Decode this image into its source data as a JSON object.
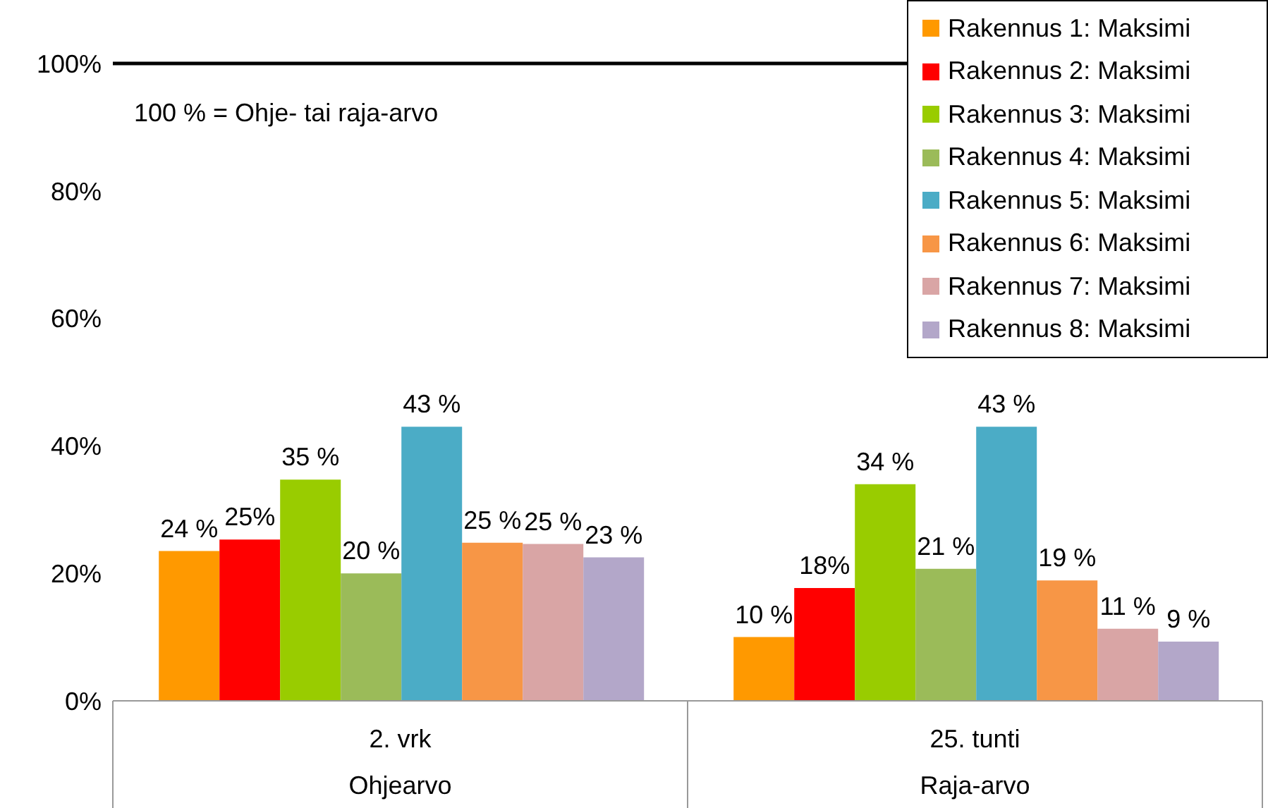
{
  "chart_data": {
    "type": "bar",
    "categories": [
      "2. vrk",
      "25. tunti"
    ],
    "series": [
      {
        "name": "Rakennus 1: Maksimi",
        "color": "#ff9900",
        "values": [
          23.5,
          10
        ],
        "value_labels": [
          "24 %",
          "10 %"
        ]
      },
      {
        "name": "Rakennus 2: Maksimi",
        "color": "#ff0000",
        "values": [
          25.3,
          17.7
        ],
        "value_labels": [
          "25%",
          "18%"
        ]
      },
      {
        "name": "Rakennus 3: Maksimi",
        "color": "#99cc00",
        "values": [
          34.7,
          34
        ],
        "value_labels": [
          "35 %",
          "34 %"
        ]
      },
      {
        "name": "Rakennus 4: Maksimi",
        "color": "#9bbb59",
        "values": [
          20,
          20.7
        ],
        "value_labels": [
          "20 %",
          "21 %"
        ]
      },
      {
        "name": "Rakennus 5: Maksimi",
        "color": "#4bacc6",
        "values": [
          43,
          43
        ],
        "value_labels": [
          "43 %",
          "43 %"
        ]
      },
      {
        "name": "Rakennus 6: Maksimi",
        "color": "#f79646",
        "values": [
          24.8,
          18.9
        ],
        "value_labels": [
          "25 %",
          "19 %"
        ]
      },
      {
        "name": "Rakennus 7: Maksimi",
        "color": "#d9a5a5",
        "values": [
          24.6,
          11.3
        ],
        "value_labels": [
          "25 %",
          "11 %"
        ]
      },
      {
        "name": "Rakennus 8: Maksimi",
        "color": "#b3a7c9",
        "values": [
          22.5,
          9.3
        ],
        "value_labels": [
          "23 %",
          "9 %"
        ]
      }
    ],
    "ylim": [
      0,
      100
    ],
    "yticks": [
      {
        "value": 0,
        "label": "0%"
      },
      {
        "value": 20,
        "label": "20%"
      },
      {
        "value": 40,
        "label": "40%"
      },
      {
        "value": 60,
        "label": "60%"
      },
      {
        "value": 80,
        "label": "80%"
      },
      {
        "value": 100,
        "label": "100%"
      }
    ],
    "grid": false,
    "legend": "top right",
    "ref_lines": [
      {
        "axis": "y",
        "value": 100,
        "color": "#000000"
      }
    ],
    "annotations": [
      "100 % = Ohje- tai raja-arvo",
      "Ohjearvo",
      "Raja-arvo"
    ]
  }
}
